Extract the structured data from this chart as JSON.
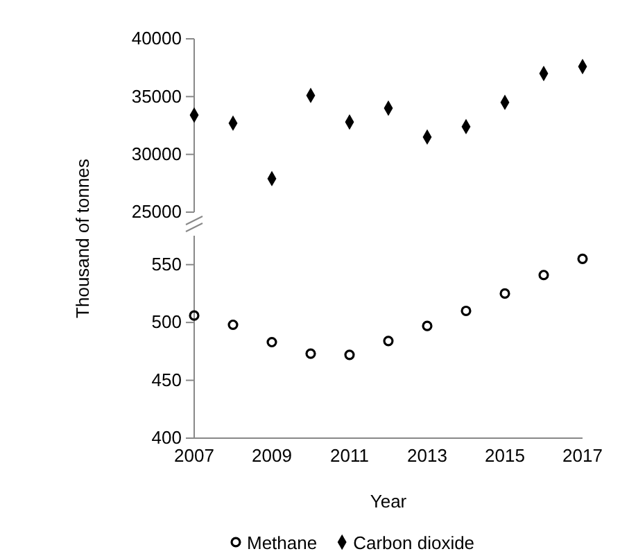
{
  "chart_data": [
    {
      "type": "scatter",
      "x": [
        2007,
        2008,
        2009,
        2010,
        2011,
        2012,
        2013,
        2014,
        2015,
        2016,
        2017
      ],
      "series": [
        {
          "name": "Carbon dioxide",
          "color": "#000000",
          "values": [
            33400,
            32700,
            27900,
            35100,
            32800,
            34000,
            31500,
            32400,
            34500,
            37000,
            37600
          ]
        }
      ],
      "xlim": [
        2007,
        2017
      ],
      "ylim": [
        25000,
        40000
      ],
      "yticks": [
        25000,
        30000,
        35000,
        40000
      ],
      "tick_labels": "y",
      "marker": "diamond",
      "legend": "bottom",
      "grid": false
    },
    {
      "type": "scatter",
      "x": [
        2007,
        2008,
        2009,
        2010,
        2011,
        2012,
        2013,
        2014,
        2015,
        2016,
        2017
      ],
      "series": [
        {
          "name": "Methane",
          "color": "#000000",
          "values": [
            506,
            498,
            483,
            473,
            472,
            484,
            497,
            510,
            525,
            541,
            555
          ]
        }
      ],
      "xlim": [
        2007,
        2017
      ],
      "ylim": [
        400,
        575
      ],
      "xticks": [
        2007,
        2009,
        2011,
        2013,
        2015,
        2017
      ],
      "yticks": [
        400,
        450,
        500,
        550
      ],
      "xlabel": "Year",
      "ylabel": "Thousand of tonnes",
      "marker": "circle",
      "legend": "bottom",
      "grid": false
    }
  ]
}
